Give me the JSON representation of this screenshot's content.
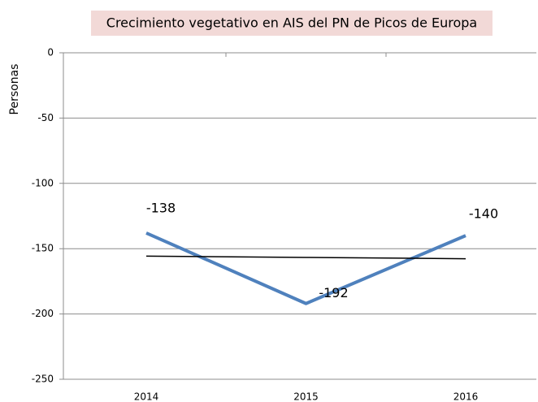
{
  "chart_data": {
    "type": "line",
    "title": "Crecimiento vegetativo en AIS del PN de Picos de Europa",
    "ylabel": "Personas",
    "categories": [
      "2014",
      "2015",
      "2016"
    ],
    "values": [
      -138,
      -192,
      -140
    ],
    "color": "#4f81bd",
    "trend_values": [
      -155.7,
      -156.7,
      -157.7
    ],
    "trend_color": "#000000",
    "ylim": [
      -250,
      0
    ],
    "yticks": [
      0,
      -50,
      -100,
      -150,
      -200,
      -250
    ],
    "grid": true
  }
}
